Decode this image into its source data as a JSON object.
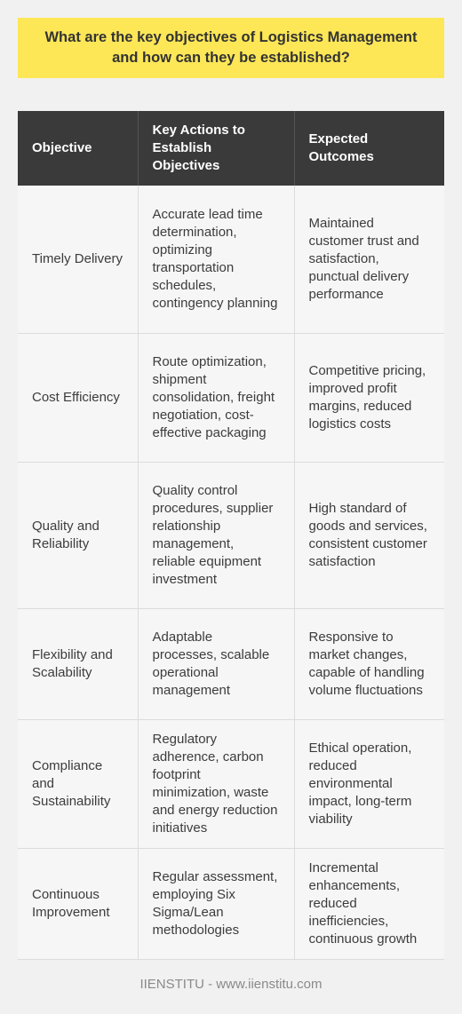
{
  "title": "What are the key objectives of Logistics Management and how can they be established?",
  "table": {
    "headers": [
      "Objective",
      "Key Actions to Establish Objectives",
      "Expected Outcomes"
    ],
    "rows": [
      {
        "objective": "Timely Delivery",
        "actions": "Accurate lead time determination, optimizing transportation schedules, contingency planning",
        "outcomes": "Maintained customer trust and satisfaction, punctual delivery performance"
      },
      {
        "objective": "Cost Efficiency",
        "actions": "Route optimization, shipment consolidation, freight negotiation, cost-effective packaging",
        "outcomes": "Competitive pricing, improved profit margins, reduced logistics costs"
      },
      {
        "objective": "Quality and Reliability",
        "actions": "Quality control procedures, supplier relationship management, reliable equipment investment",
        "outcomes": "High standard of goods and services, consistent customer satisfaction"
      },
      {
        "objective": "Flexibility and Scalability",
        "actions": "Adaptable processes, scalable operational management",
        "outcomes": "Responsive to market changes, capable of handling volume fluctuations"
      },
      {
        "objective": "Compliance and Sustainability",
        "actions": "Regulatory adherence, carbon footprint minimization, waste and energy reduction initiatives",
        "outcomes": "Ethical operation, reduced environmental impact, long-term viability"
      },
      {
        "objective": "Continuous Improvement",
        "actions": "Regular assessment, employing Six Sigma/Lean methodologies",
        "outcomes": "Incremental enhancements, reduced inefficiencies, continuous growth"
      }
    ]
  },
  "footer": "IIENSTITU - www.iienstitu.com",
  "colors": {
    "background": "#f1f1f1",
    "title_background": "#fde757",
    "header_background": "#3a3a3a",
    "cell_background": "#f6f6f6",
    "footer_text": "#8a8a8a"
  }
}
